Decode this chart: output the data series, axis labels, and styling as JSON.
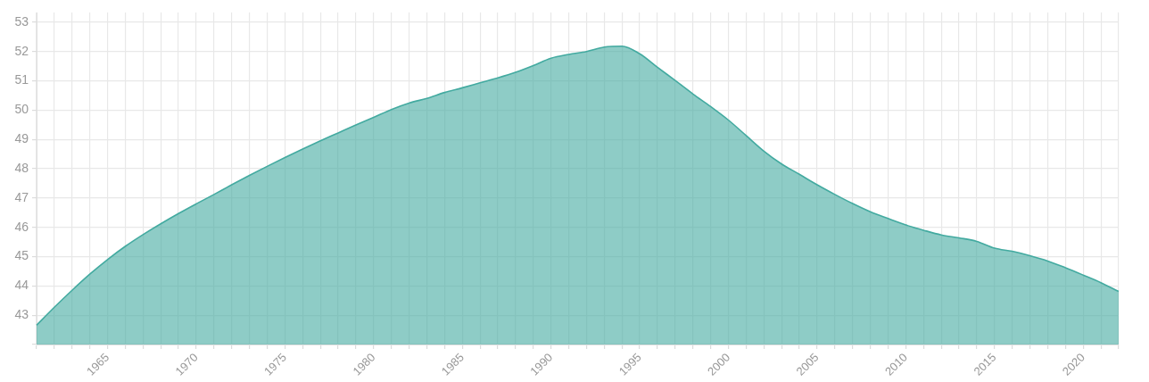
{
  "chart_data": {
    "type": "area",
    "categories": [
      null,
      null,
      null,
      null,
      "1965",
      null,
      null,
      null,
      null,
      "1970",
      null,
      null,
      null,
      null,
      "1975",
      null,
      null,
      null,
      null,
      "1980",
      null,
      null,
      null,
      null,
      "1985",
      null,
      null,
      null,
      null,
      "1990",
      null,
      null,
      null,
      null,
      "1995",
      null,
      null,
      null,
      null,
      "2000",
      null,
      null,
      null,
      null,
      "2005",
      null,
      null,
      null,
      null,
      "2010",
      null,
      null,
      null,
      null,
      "2015",
      null,
      null,
      null,
      null,
      "2020",
      null,
      null
    ],
    "values": [
      42.66,
      43.27,
      43.85,
      44.4,
      44.9,
      45.35,
      45.75,
      46.12,
      46.47,
      46.8,
      47.12,
      47.45,
      47.77,
      48.08,
      48.38,
      48.67,
      48.95,
      49.22,
      49.49,
      49.75,
      50.02,
      50.24,
      50.4,
      50.6,
      50.76,
      50.93,
      51.1,
      51.29,
      51.52,
      51.77,
      51.9,
      52.0,
      52.15,
      52.18,
      51.92,
      51.46,
      51.01,
      50.55,
      50.12,
      49.66,
      49.13,
      48.6,
      48.16,
      47.81,
      47.45,
      47.12,
      46.81,
      46.53,
      46.3,
      46.08,
      45.9,
      45.74,
      45.64,
      45.52,
      45.29,
      45.18,
      45.03,
      44.85,
      44.62,
      44.37,
      44.11,
      43.81
    ],
    "color": "#43aaa0",
    "ylim": [
      42,
      53.33
    ],
    "yticks": [
      {
        "value": 42,
        "label": null
      },
      43,
      44,
      45,
      46,
      47,
      48,
      49,
      50,
      51,
      52,
      53
    ],
    "grid": true
  }
}
